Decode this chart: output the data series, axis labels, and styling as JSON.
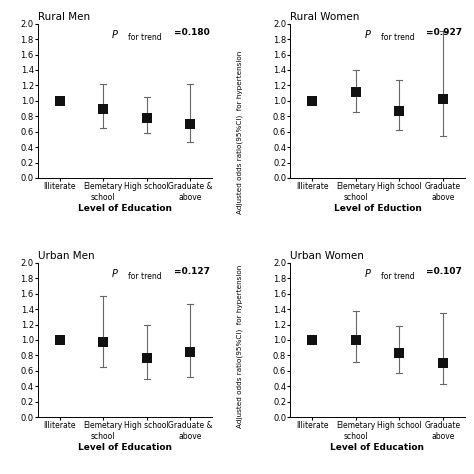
{
  "panels": [
    {
      "title": "Rural Men",
      "p_value": "=0.180",
      "categories": [
        "Illiterate",
        "Elemetary\nschool",
        "High school",
        "Graduate &\nabove"
      ],
      "xlabel": "Level of Education",
      "values": [
        1.0,
        0.9,
        0.78,
        0.7
      ],
      "ci_lower": [
        1.0,
        0.65,
        0.58,
        0.47
      ],
      "ci_upper": [
        1.0,
        1.22,
        1.05,
        1.22
      ],
      "row": 0,
      "col": 0
    },
    {
      "title": "Rural Women",
      "p_value": "=0.927",
      "categories": [
        "Illiterate",
        "Elemetary\nschool",
        "High school",
        "Graduate\nabove"
      ],
      "xlabel": "Level of Eduction",
      "values": [
        1.0,
        1.12,
        0.87,
        1.02
      ],
      "ci_lower": [
        1.0,
        0.85,
        0.62,
        0.55
      ],
      "ci_upper": [
        1.0,
        1.4,
        1.27,
        1.9
      ],
      "row": 0,
      "col": 1
    },
    {
      "title": "Urban Men",
      "p_value": "=0.127",
      "categories": [
        "Illiterate",
        "Elemetary\nschool",
        "High school",
        "Graduate &\nabove"
      ],
      "xlabel": "Level of Education",
      "values": [
        1.0,
        0.98,
        0.77,
        0.85
      ],
      "ci_lower": [
        1.0,
        0.65,
        0.5,
        0.52
      ],
      "ci_upper": [
        1.0,
        1.57,
        1.2,
        1.47
      ],
      "row": 1,
      "col": 0
    },
    {
      "title": "Urban Women",
      "p_value": "=0.107",
      "categories": [
        "Illiterate",
        "Elemetary\nschool",
        "High school",
        "Graduate\nabove"
      ],
      "xlabel": "Level of Education",
      "values": [
        1.0,
        1.0,
        0.83,
        0.7
      ],
      "ci_lower": [
        1.0,
        0.72,
        0.57,
        0.43
      ],
      "ci_upper": [
        1.0,
        1.38,
        1.18,
        1.35
      ],
      "row": 1,
      "col": 1
    }
  ],
  "ylim": [
    0,
    2.0
  ],
  "yticks": [
    0,
    0.2,
    0.4,
    0.6,
    0.8,
    1.0,
    1.2,
    1.4,
    1.6,
    1.8,
    2.0
  ],
  "marker_color": "#111111",
  "marker_size": 45,
  "line_color": "#666666",
  "ylabel": "Adjusted odds ratio(95%CI)  for hypertension"
}
